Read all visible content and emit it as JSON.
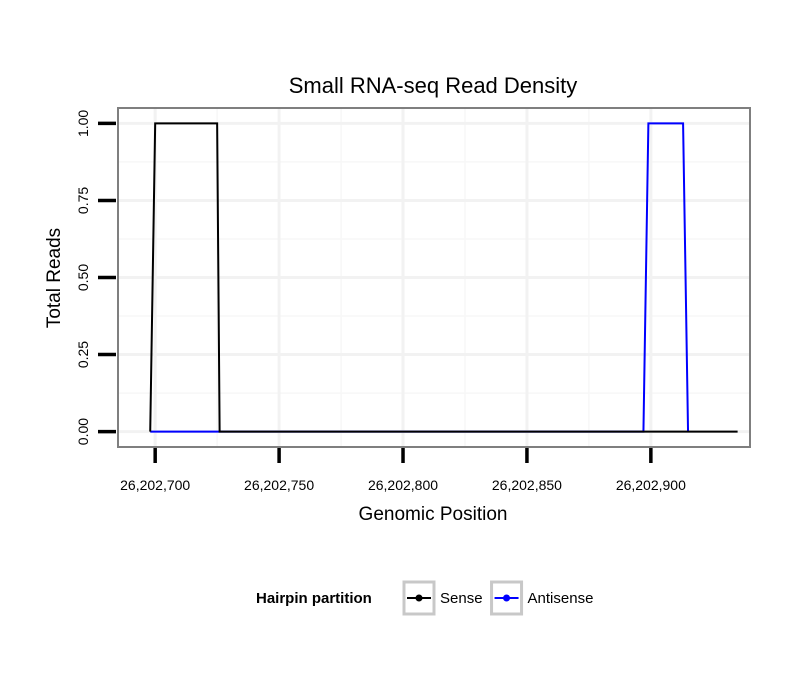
{
  "chart_data": {
    "type": "line",
    "title": "Small RNA-seq Read Density",
    "xlabel": "Genomic Position",
    "ylabel": "Total Reads",
    "xlim": [
      26202685,
      26202940
    ],
    "ylim": [
      -0.05,
      1.05
    ],
    "x_ticks": [
      26202700,
      26202750,
      26202800,
      26202850,
      26202900
    ],
    "x_tick_labels": [
      "26,202,700",
      "26,202,750",
      "26,202,800",
      "26,202,850",
      "26,202,900"
    ],
    "y_ticks": [
      0,
      0.25,
      0.5,
      0.75,
      1
    ],
    "y_tick_labels": [
      "0.00",
      "0.25",
      "0.50",
      "0.75",
      "1.00"
    ],
    "grid": true,
    "legend": {
      "title": "Hairpin partition",
      "position": "bottom"
    },
    "series": [
      {
        "name": "Sense",
        "color": "#000000",
        "x": [
          26202698,
          26202700,
          26202725,
          26202726,
          26202935
        ],
        "y": [
          0,
          1,
          1,
          0,
          0
        ]
      },
      {
        "name": "Antisense",
        "color": "#0000ff",
        "x": [
          26202698,
          26202726,
          26202897,
          26202899,
          26202913,
          26202915
        ],
        "y": [
          0,
          0,
          0,
          1,
          1,
          0
        ]
      }
    ]
  }
}
